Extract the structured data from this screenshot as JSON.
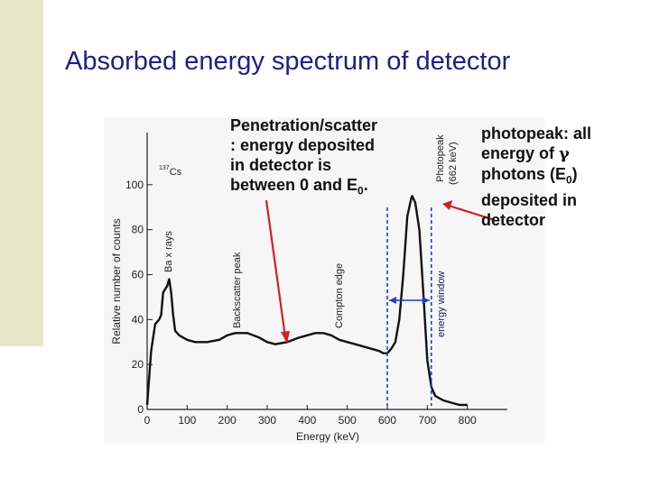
{
  "slide": {
    "title": "Absorbed energy spectrum of detector",
    "accent_color": "#1f1f86",
    "side_bar_color": "#e6e6c8"
  },
  "annotations": {
    "scatter": {
      "line1": "Penetration/scatter",
      "line2": ": energy deposited",
      "line3": "in detector is",
      "line4_pre": "between 0 and E",
      "line4_sub": "0",
      "line4_post": "."
    },
    "photopeak": {
      "line1": "photopeak: all",
      "line2_pre": "energy of ",
      "line2_symbol": "γ",
      "line3_pre": "photons (E",
      "line3_sub": "0",
      "line3_post": ")",
      "line4": "deposited in",
      "line5": "detector"
    },
    "arrow_color": "#d0202a",
    "window_color": "#1f3fbf"
  },
  "chart_data": {
    "type": "line",
    "xlabel": "Energy (keV)",
    "ylabel": "Relative number of counts",
    "xlim": [
      0,
      900
    ],
    "ylim": [
      0,
      120
    ],
    "xticks": [
      0,
      100,
      200,
      300,
      400,
      500,
      600,
      700,
      800
    ],
    "yticks": [
      0,
      20,
      40,
      60,
      80,
      100
    ],
    "grid": false,
    "series": [
      {
        "x": [
          0,
          10,
          20,
          30,
          35,
          40,
          50,
          55,
          60,
          65,
          70,
          80,
          100,
          120,
          150,
          180,
          200,
          220,
          250,
          280,
          300,
          320,
          350,
          380,
          400,
          420,
          440,
          460,
          480,
          500,
          520,
          540,
          560,
          580,
          590,
          600,
          610,
          620,
          630,
          640,
          650,
          660,
          662,
          670,
          680,
          690,
          700,
          710,
          720,
          740,
          760,
          780,
          800
        ],
        "values": [
          2,
          26,
          38,
          40,
          42,
          52,
          55,
          58,
          52,
          42,
          35,
          33,
          31,
          30,
          30,
          31,
          33,
          34,
          34,
          32,
          30,
          29,
          30,
          32,
          33,
          34,
          34,
          33,
          31,
          30,
          29,
          28,
          27,
          26,
          25,
          25,
          27,
          30,
          40,
          60,
          86,
          94,
          95,
          92,
          80,
          52,
          22,
          10,
          6,
          4,
          3,
          2,
          2
        ]
      }
    ],
    "labels": {
      "source": "137Cs",
      "source_mass": "137",
      "source_element": "Cs",
      "ba_xrays": "Ba x rays",
      "backscatter": "Backscatter peak",
      "compton": "Compton edge",
      "photopeak": "Photopeak",
      "photopeak_energy": "(662 keV)",
      "energy_window": "energy window"
    },
    "energy_window_keV": [
      600,
      710
    ]
  }
}
